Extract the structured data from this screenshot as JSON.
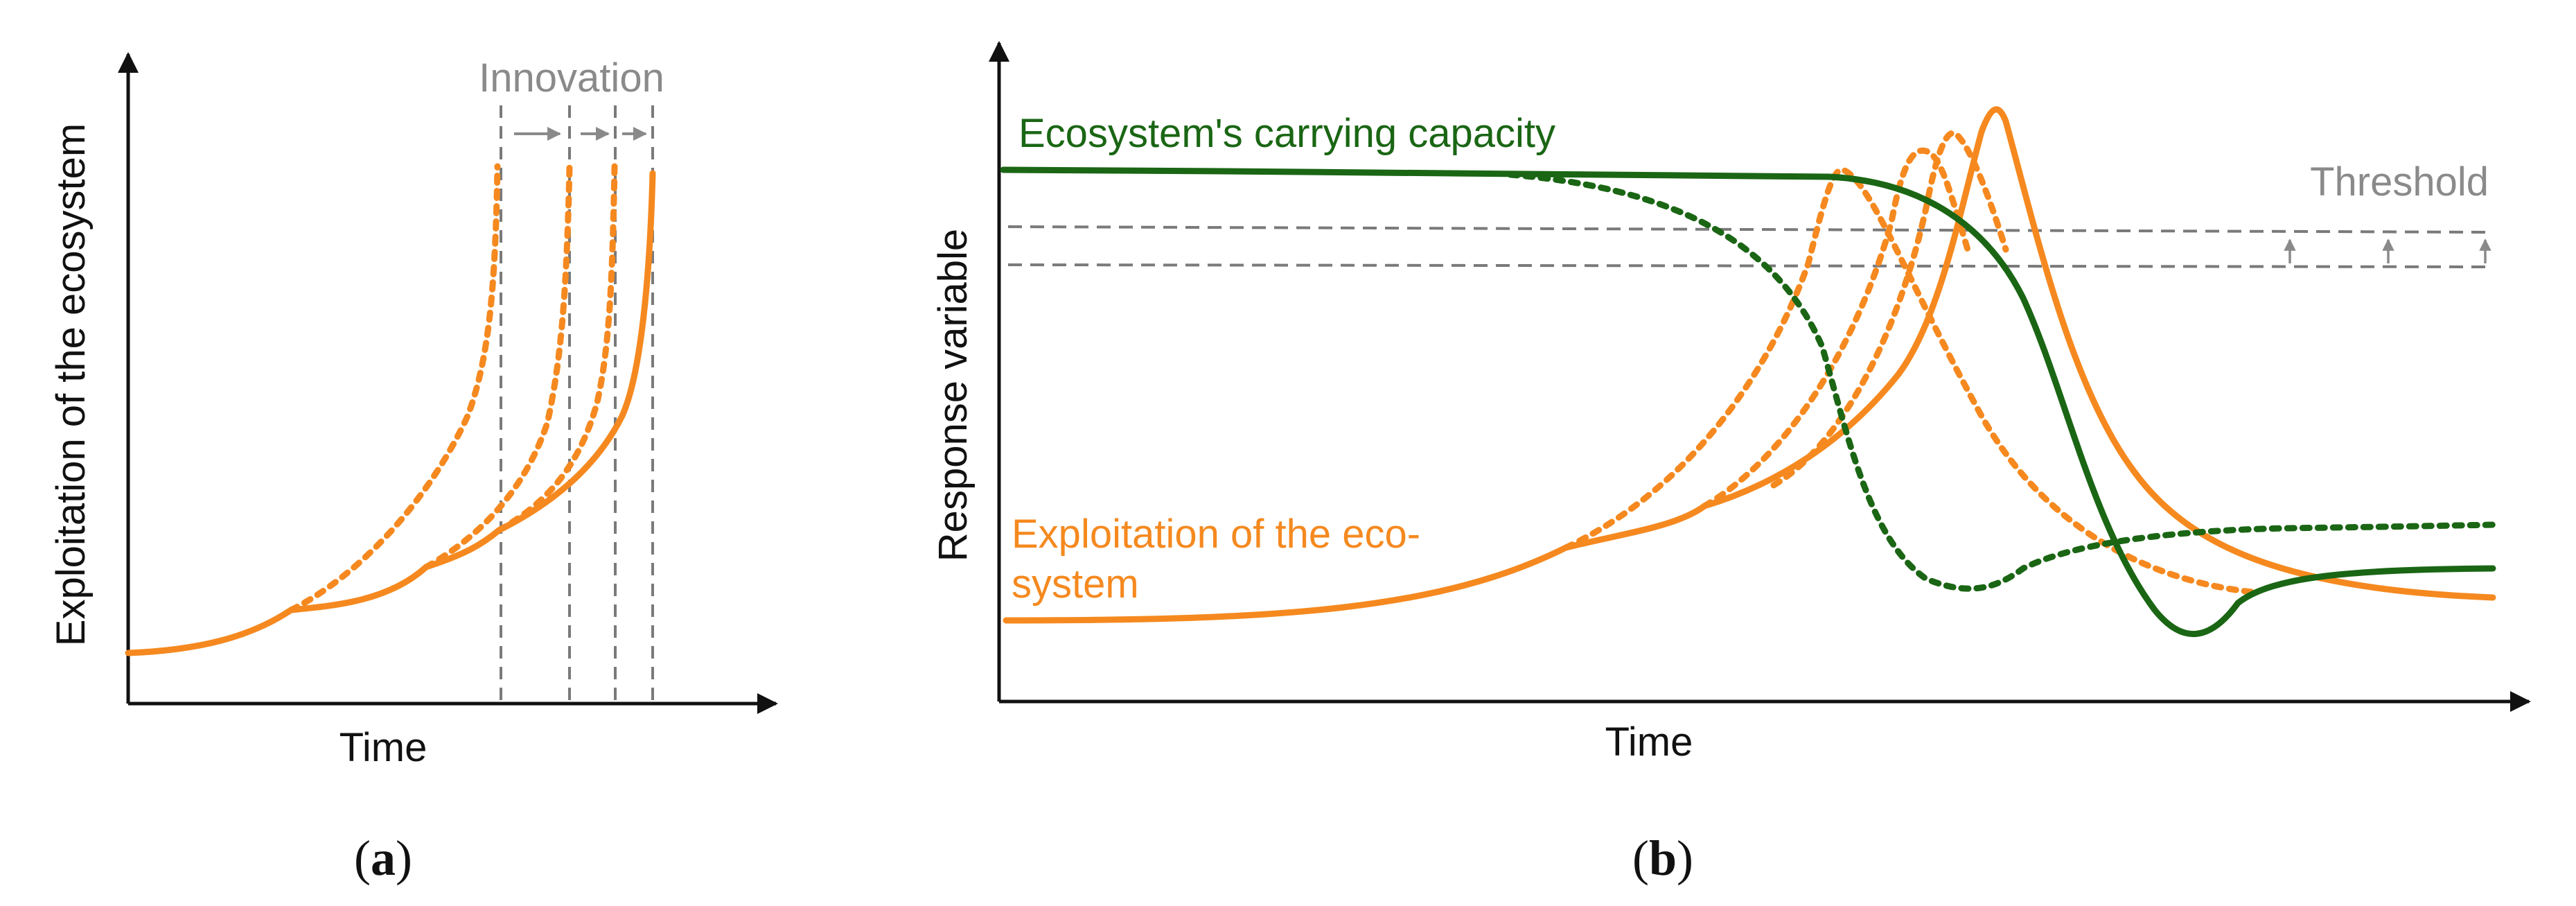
{
  "colors": {
    "exploitation": "#F5891F",
    "carrying_capacity": "#1A6614",
    "axis": "#111111",
    "dashed": "#7A7A7A",
    "annotation_text": "#8A8A8A"
  },
  "panel_a": {
    "caption": "(a)",
    "caption_letter": "a",
    "x_axis_label": "Time",
    "y_axis_label": "Exploitation of the ecosystem",
    "annotation": "Innovation"
  },
  "panel_b": {
    "caption": "(b)",
    "caption_letter": "b",
    "x_axis_label": "Time",
    "y_axis_label": "Response variable",
    "carrying_capacity_label": "Ecosystem's carrying capacity",
    "exploitation_label_line1": "Exploitation of the eco-",
    "exploitation_label_line2": "system",
    "threshold_label": "Threshold"
  }
}
